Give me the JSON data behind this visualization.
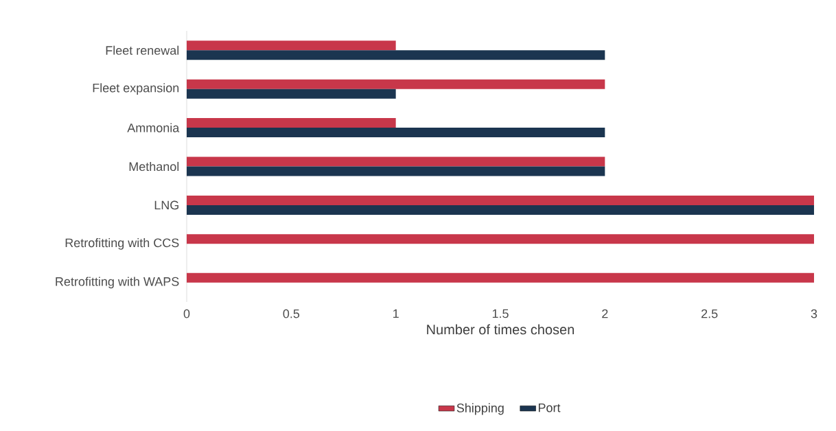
{
  "chart_data": {
    "type": "bar",
    "orientation": "horizontal",
    "xlabel": "Number of times chosen",
    "categories": [
      "Fleet renewal",
      "Fleet expansion",
      "Ammonia",
      "Methanol",
      "LNG",
      "Retrofitting with CCS",
      "Retrofitting with WAPS"
    ],
    "series": [
      {
        "name": "Shipping",
        "color": "#c8374a",
        "values": [
          1,
          2,
          1,
          2,
          3,
          3,
          3
        ]
      },
      {
        "name": "Port",
        "color": "#1b3550",
        "values": [
          2,
          1,
          2,
          2,
          3,
          0,
          0
        ]
      }
    ],
    "xlim": [
      0,
      3
    ],
    "xticks": [
      0,
      0.5,
      1,
      1.5,
      2,
      2.5,
      3
    ],
    "grid": false,
    "legend": "bottom"
  }
}
